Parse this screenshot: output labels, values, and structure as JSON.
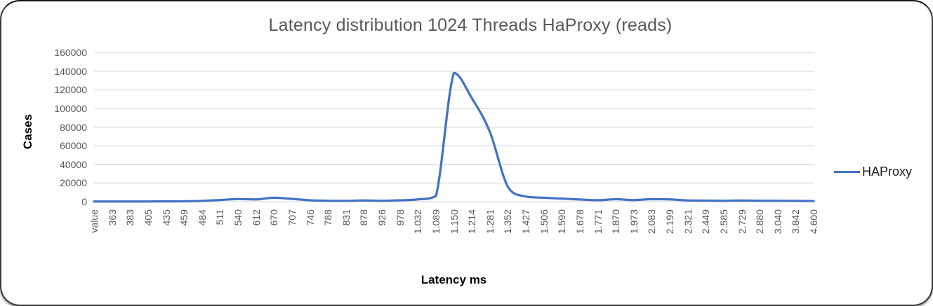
{
  "chart_data": {
    "type": "line",
    "title": "Latency distribution 1024 Threads HaProxy (reads)",
    "xlabel": "Latency ms",
    "ylabel": "Cases",
    "legend_position": "right",
    "grid": true,
    "smooth": true,
    "ylim": [
      0,
      160000
    ],
    "yticks": [
      0,
      20000,
      40000,
      60000,
      80000,
      100000,
      120000,
      140000,
      160000
    ],
    "categories": [
      "value",
      "363",
      "383",
      "405",
      "435",
      "459",
      "484",
      "511",
      "540",
      "612",
      "670",
      "707",
      "746",
      "788",
      "831",
      "878",
      "926",
      "978",
      "1.032",
      "1.089",
      "1.150",
      "1.214",
      "1.281",
      "1.352",
      "1.427",
      "1.506",
      "1.590",
      "1.678",
      "1.771",
      "1.870",
      "1.973",
      "2.083",
      "2.199",
      "2.321",
      "2.449",
      "2.585",
      "2.729",
      "2.880",
      "3.040",
      "3.842",
      "4.600"
    ],
    "series": [
      {
        "name": "HAProxy",
        "color": "#4472C4",
        "values": [
          200,
          250,
          250,
          250,
          300,
          350,
          800,
          1800,
          2800,
          2400,
          4200,
          3000,
          1500,
          900,
          800,
          1300,
          900,
          1500,
          2400,
          6000,
          138000,
          111000,
          75000,
          16000,
          5500,
          4200,
          3300,
          2300,
          1600,
          2600,
          1700,
          2700,
          2400,
          1300,
          1100,
          1000,
          1200,
          1000,
          900,
          800,
          700
        ]
      }
    ]
  },
  "styles": {
    "line_color": "#4472C4",
    "grid_color": "#D9D9D9",
    "tick_label_color": "#595959",
    "title_color": "#595959",
    "axis_title_color": "#000000",
    "legend_text_color": "#1f1f1f",
    "frame_border_color": "#3a3a3a",
    "background": "#FFFFFF"
  }
}
